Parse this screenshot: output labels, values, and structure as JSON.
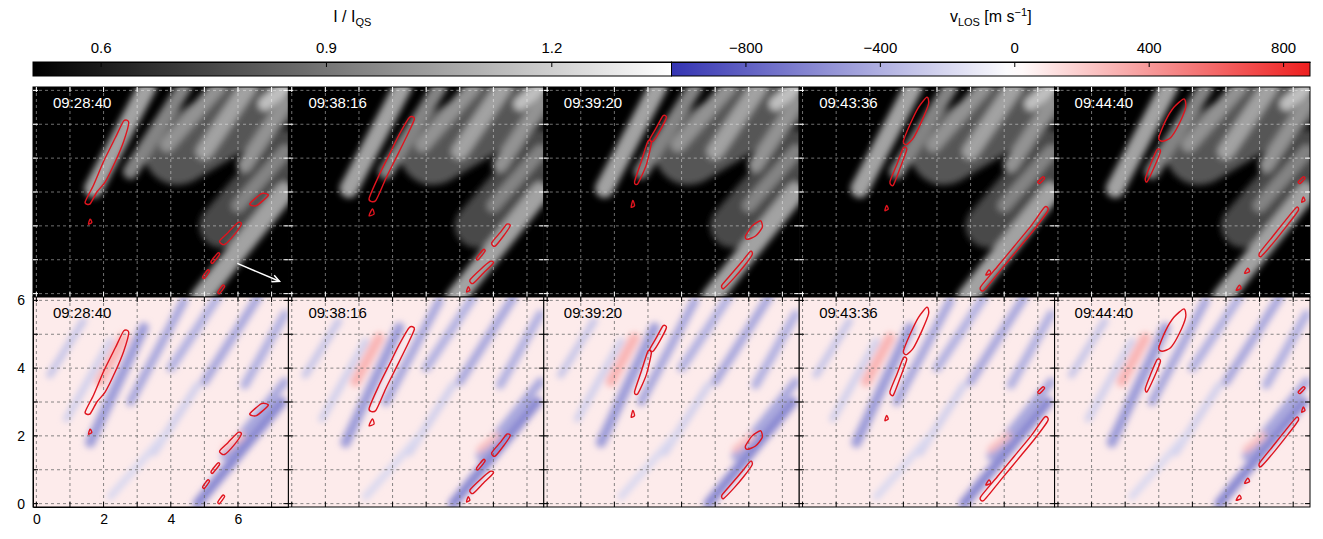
{
  "chart_data": {
    "type": "heatmap",
    "xlim": [
      -0.1,
      7.5
    ],
    "ylim": [
      -0.1,
      6.1
    ],
    "xticks": [
      0,
      2,
      4,
      6
    ],
    "yticks": [
      0,
      2,
      4,
      6
    ],
    "grid": true,
    "x_gridlines": [
      0,
      1,
      2,
      3,
      4,
      5,
      6,
      7
    ],
    "y_gridlines": [
      0,
      1,
      2,
      3,
      4,
      5,
      6
    ],
    "maps": [
      {
        "label": [
          {
            "text": "I / I"
          },
          {
            "sub": "QS"
          }
        ],
        "range": [
          0.51,
          1.36
        ],
        "ticks": [
          0.6,
          0.9,
          1.2
        ],
        "background": 0.5,
        "features": [
          {
            "x": [
              4.2,
              7.4
            ],
            "y": [
              4.2,
              6.1
            ],
            "width": 2.0,
            "value": 0.8
          },
          {
            "x": [
              5.5,
              7.4
            ],
            "y": [
              2.0,
              4.2
            ],
            "width": 1.3,
            "value": 0.75
          },
          {
            "x": [
              1.7,
              3.3
            ],
            "y": [
              3.1,
              6.1
            ],
            "width": 0.55,
            "value": 1.05
          },
          {
            "x": [
              2.8,
              4.4
            ],
            "y": [
              3.6,
              6.1
            ],
            "width": 0.45,
            "value": 0.95
          },
          {
            "x": [
              3.9,
              5.4
            ],
            "y": [
              4.4,
              6.1
            ],
            "width": 0.45,
            "value": 1.0
          },
          {
            "x": [
              5.0,
              6.3
            ],
            "y": [
              4.2,
              6.1
            ],
            "width": 0.5,
            "value": 1.05
          },
          {
            "x": [
              6.2,
              7.4
            ],
            "y": [
              3.8,
              5.6
            ],
            "width": 0.45,
            "value": 1.0
          },
          {
            "x": [
              4.9,
              7.4
            ],
            "y": [
              -0.1,
              3.0
            ],
            "width": 0.6,
            "value": 1.05
          },
          {
            "x": [
              6.0,
              7.4
            ],
            "y": [
              2.6,
              4.2
            ],
            "width": 0.4,
            "value": 0.95
          },
          {
            "x": [
              6.8,
              7.4
            ],
            "y": [
              5.6,
              6.1
            ],
            "width": 0.4,
            "value": 1.15
          }
        ]
      },
      {
        "label": [
          {
            "text": "v"
          },
          {
            "sub": "LOS"
          },
          {
            "text": " [m s"
          },
          {
            "sup": "−1"
          },
          {
            "text": "]"
          }
        ],
        "range": [
          -1020,
          880
        ],
        "center": 0,
        "ticks": [
          {
            "value": -800,
            "label": "−800"
          },
          {
            "value": -400,
            "label": "−400"
          },
          0,
          400,
          800
        ],
        "background": 80,
        "features": [
          {
            "x": [
              1.6,
              3.2
            ],
            "y": [
              1.8,
              5.2
            ],
            "width": 0.3,
            "value": -500
          },
          {
            "x": [
              2.8,
              4.4
            ],
            "y": [
              3.0,
              6.0
            ],
            "width": 0.25,
            "value": -450
          },
          {
            "x": [
              4.0,
              5.4
            ],
            "y": [
              4.0,
              6.1
            ],
            "width": 0.25,
            "value": -400
          },
          {
            "x": [
              5.0,
              6.6
            ],
            "y": [
              3.6,
              6.1
            ],
            "width": 0.25,
            "value": -450
          },
          {
            "x": [
              6.2,
              7.4
            ],
            "y": [
              3.5,
              5.6
            ],
            "width": 0.25,
            "value": -400
          },
          {
            "x": [
              4.8,
              7.3
            ],
            "y": [
              0.0,
              3.0
            ],
            "width": 0.3,
            "value": -600
          },
          {
            "x": [
              5.6,
              7.4
            ],
            "y": [
              1.4,
              3.6
            ],
            "width": 0.25,
            "value": -450
          },
          {
            "x": [
              0.4,
              1.4
            ],
            "y": [
              3.8,
              5.4
            ],
            "width": 0.2,
            "value": -300
          },
          {
            "x": [
              0.9,
              2.2
            ],
            "y": [
              2.5,
              4.8
            ],
            "width": 0.2,
            "value": -250
          },
          {
            "x": [
              3.5,
              4.8
            ],
            "y": [
              1.5,
              3.5
            ],
            "width": 0.2,
            "value": -250
          },
          {
            "x": [
              2.2,
              3.8
            ],
            "y": [
              0.2,
              2.0
            ],
            "width": 0.2,
            "value": -200
          },
          {
            "x": [
              1.9,
              2.6
            ],
            "y": [
              3.6,
              4.9
            ],
            "width": 0.3,
            "value": 300
          },
          {
            "x": [
              5.6,
              6.1
            ],
            "y": [
              1.6,
              2.0
            ],
            "width": 0.2,
            "value": 250
          }
        ]
      }
    ],
    "panels": [
      {
        "time": "09:28:40",
        "contours": [
          {
            "x": [
              1.45,
              1.7,
              2.0,
              2.35,
              2.6,
              2.75,
              2.6,
              2.35,
              2.05,
              1.8,
              1.6
            ],
            "y": [
              2.7,
              3.2,
              3.9,
              4.6,
              5.1,
              5.05,
              4.5,
              3.9,
              3.3,
              3.0,
              2.65
            ]
          },
          {
            "x": [
              1.55,
              1.65,
              1.6
            ],
            "y": [
              2.05,
              2.1,
              2.2
            ]
          },
          {
            "x": [
              6.35,
              6.7,
              6.9,
              6.55
            ],
            "y": [
              2.65,
              2.95,
              2.9,
              2.6
            ]
          },
          {
            "x": [
              5.45,
              5.7,
              6.0,
              6.1,
              5.9,
              5.6
            ],
            "y": [
              1.55,
              1.8,
              2.1,
              2.05,
              1.75,
              1.45
            ]
          },
          {
            "x": [
              5.2,
              5.4,
              5.45,
              5.25
            ],
            "y": [
              0.95,
              1.2,
              1.15,
              0.9
            ]
          },
          {
            "x": [
              4.95,
              5.1,
              5.15,
              5.0
            ],
            "y": [
              0.5,
              0.7,
              0.65,
              0.45
            ]
          },
          {
            "x": [
              5.4,
              5.55,
              5.6,
              5.45
            ],
            "y": [
              0.05,
              0.25,
              0.2,
              0.0
            ]
          }
        ]
      },
      {
        "time": "09:38:16",
        "contours": [
          {
            "x": [
              2.3,
              2.6,
              2.9,
              3.2,
              3.5,
              3.65,
              3.4,
              3.1,
              2.8,
              2.5
            ],
            "y": [
              2.8,
              3.5,
              4.1,
              4.7,
              5.2,
              5.15,
              4.6,
              4.0,
              3.4,
              2.75
            ]
          },
          {
            "x": [
              2.3,
              2.45,
              2.4
            ],
            "y": [
              2.3,
              2.35,
              2.5
            ]
          },
          {
            "x": [
              5.95,
              6.2,
              6.4,
              6.5,
              6.3,
              6.05
            ],
            "y": [
              1.5,
              1.8,
              2.05,
              2.0,
              1.7,
              1.4
            ]
          },
          {
            "x": [
              5.5,
              5.7,
              5.75,
              5.55
            ],
            "y": [
              1.05,
              1.3,
              1.25,
              1.0
            ]
          },
          {
            "x": [
              5.3,
              5.6,
              5.9,
              6.0,
              5.7,
              5.4
            ],
            "y": [
              0.4,
              0.7,
              0.95,
              0.9,
              0.6,
              0.3
            ]
          },
          {
            "x": [
              5.2,
              5.3,
              5.25
            ],
            "y": [
              0.05,
              0.1,
              0.2
            ]
          }
        ]
      },
      {
        "time": "09:39:20",
        "contours": [
          {
            "x": [
              2.6,
              2.8,
              3.0,
              3.1,
              2.95,
              2.7
            ],
            "y": [
              3.3,
              3.9,
              4.5,
              4.45,
              3.8,
              3.25
            ]
          },
          {
            "x": [
              3.05,
              3.25,
              3.45,
              3.55,
              3.35,
              3.15
            ],
            "y": [
              4.55,
              4.9,
              5.25,
              5.2,
              4.8,
              4.5
            ]
          },
          {
            "x": [
              2.5,
              2.6,
              2.55
            ],
            "y": [
              2.55,
              2.6,
              2.75
            ]
          },
          {
            "x": [
              5.9,
              6.1,
              6.35,
              6.4,
              6.2,
              5.95
            ],
            "y": [
              1.7,
              2.0,
              2.15,
              1.95,
              1.7,
              1.6
            ]
          },
          {
            "x": [
              5.2,
              5.5,
              5.8,
              6.05,
              6.1,
              5.85,
              5.55,
              5.25
            ],
            "y": [
              0.25,
              0.6,
              0.95,
              1.25,
              1.15,
              0.8,
              0.45,
              0.15
            ]
          }
        ]
      },
      {
        "time": "09:43:36",
        "contours": [
          {
            "x": [
              3.0,
              3.2,
              3.45,
              3.7,
              3.75,
              3.55,
              3.3,
              3.1
            ],
            "y": [
              4.5,
              5.0,
              5.5,
              5.8,
              5.6,
              5.1,
              4.6,
              4.4
            ]
          },
          {
            "x": [
              2.6,
              2.8,
              3.0,
              3.1,
              2.9,
              2.7
            ],
            "y": [
              3.3,
              3.8,
              4.3,
              4.25,
              3.7,
              3.2
            ]
          },
          {
            "x": [
              2.45,
              2.55,
              2.5
            ],
            "y": [
              2.45,
              2.5,
              2.6
            ]
          },
          {
            "x": [
              5.3,
              5.8,
              6.3,
              6.8,
              7.2,
              7.3,
              6.9,
              6.4,
              5.9,
              5.4
            ],
            "y": [
              0.2,
              0.8,
              1.4,
              2.0,
              2.55,
              2.45,
              1.9,
              1.3,
              0.7,
              0.1
            ]
          },
          {
            "x": [
              7.0,
              7.15,
              7.2,
              7.05
            ],
            "y": [
              3.3,
              3.45,
              3.4,
              3.25
            ]
          },
          {
            "x": [
              5.45,
              5.6,
              5.55
            ],
            "y": [
              0.55,
              0.6,
              0.7
            ]
          }
        ]
      },
      {
        "time": "09:44:40",
        "contours": [
          {
            "x": [
              3.0,
              3.2,
              3.45,
              3.75,
              3.8,
              3.6,
              3.35,
              3.1
            ],
            "y": [
              4.6,
              5.1,
              5.5,
              5.75,
              5.5,
              5.0,
              4.6,
              4.5
            ]
          },
          {
            "x": [
              2.6,
              2.75,
              2.95,
              3.05,
              2.85,
              2.65
            ],
            "y": [
              3.4,
              3.8,
              4.25,
              4.2,
              3.7,
              3.3
            ]
          },
          {
            "x": [
              6.0,
              6.4,
              6.8,
              7.1,
              7.15,
              6.85,
              6.45,
              6.05
            ],
            "y": [
              1.2,
              1.7,
              2.2,
              2.55,
              2.45,
              2.05,
              1.55,
              1.1
            ]
          },
          {
            "x": [
              7.15,
              7.3,
              7.35,
              7.2
            ],
            "y": [
              3.3,
              3.45,
              3.4,
              3.25
            ]
          },
          {
            "x": [
              7.25,
              7.35,
              7.3
            ],
            "y": [
              2.7,
              2.75,
              2.85
            ]
          },
          {
            "x": [
              5.55,
              5.7,
              5.65
            ],
            "y": [
              0.6,
              0.65,
              0.75
            ]
          },
          {
            "x": [
              5.3,
              5.45,
              5.4
            ],
            "y": [
              0.1,
              0.15,
              0.25
            ]
          }
        ]
      }
    ]
  }
}
